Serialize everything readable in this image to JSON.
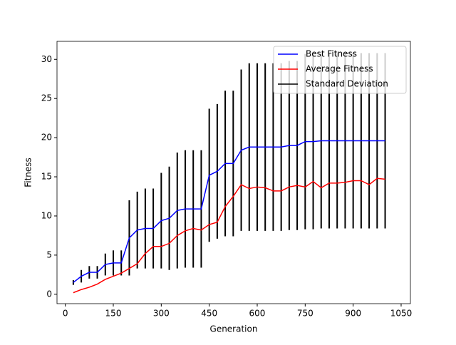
{
  "chart_data": {
    "type": "line",
    "xlabel": "Generation",
    "ylabel": "Fitness",
    "x": [
      25,
      50,
      75,
      100,
      125,
      150,
      175,
      200,
      225,
      250,
      275,
      300,
      325,
      350,
      375,
      400,
      425,
      450,
      475,
      500,
      525,
      550,
      575,
      600,
      625,
      650,
      675,
      700,
      725,
      750,
      775,
      800,
      825,
      850,
      875,
      900,
      925,
      950,
      975,
      1000
    ],
    "series": [
      {
        "name": "Best Fitness",
        "color": "#0000ff",
        "kind": "line",
        "values": [
          1.5,
          2.3,
          2.8,
          2.8,
          3.8,
          4.0,
          4.0,
          7.2,
          8.2,
          8.4,
          8.4,
          9.4,
          9.7,
          10.7,
          10.9,
          10.9,
          10.9,
          15.2,
          15.7,
          16.7,
          16.7,
          18.4,
          18.8,
          18.8,
          18.8,
          18.8,
          18.8,
          19.0,
          19.0,
          19.5,
          19.5,
          19.6,
          19.6,
          19.6,
          19.6,
          19.6,
          19.6,
          19.6,
          19.6,
          19.6
        ]
      },
      {
        "name": "Average Fitness",
        "color": "#ff0000",
        "kind": "line",
        "values": [
          0.2,
          0.6,
          0.9,
          1.3,
          1.9,
          2.3,
          2.7,
          3.3,
          3.9,
          5.2,
          6.1,
          6.1,
          6.5,
          7.5,
          8.1,
          8.4,
          8.2,
          8.9,
          9.2,
          11.2,
          12.5,
          14.0,
          13.5,
          13.7,
          13.6,
          13.2,
          13.2,
          13.7,
          13.9,
          13.7,
          14.4,
          13.6,
          14.2,
          14.2,
          14.3,
          14.5,
          14.5,
          14.0,
          14.8,
          14.7
        ]
      },
      {
        "name": "Standard Deviation",
        "color": "#000000",
        "kind": "errorbar",
        "center": "Best Fitness",
        "values": [
          0.3,
          0.8,
          0.8,
          0.8,
          1.4,
          1.6,
          1.6,
          4.8,
          4.9,
          5.1,
          5.1,
          6.1,
          6.6,
          7.4,
          7.5,
          7.5,
          7.5,
          8.5,
          8.6,
          9.3,
          9.3,
          10.3,
          10.7,
          10.7,
          10.7,
          10.7,
          10.7,
          10.8,
          10.8,
          11.2,
          11.2,
          11.2,
          11.2,
          11.2,
          11.2,
          11.2,
          11.2,
          11.2,
          11.2,
          11.2
        ]
      }
    ],
    "xlim": [
      -26,
      1079
    ],
    "xticks": [
      0,
      150,
      300,
      450,
      600,
      750,
      900,
      1050
    ],
    "ylim": [
      -1.2,
      32.3
    ],
    "yticks": [
      0,
      5,
      10,
      15,
      20,
      25,
      30
    ],
    "legend": "upper right"
  }
}
